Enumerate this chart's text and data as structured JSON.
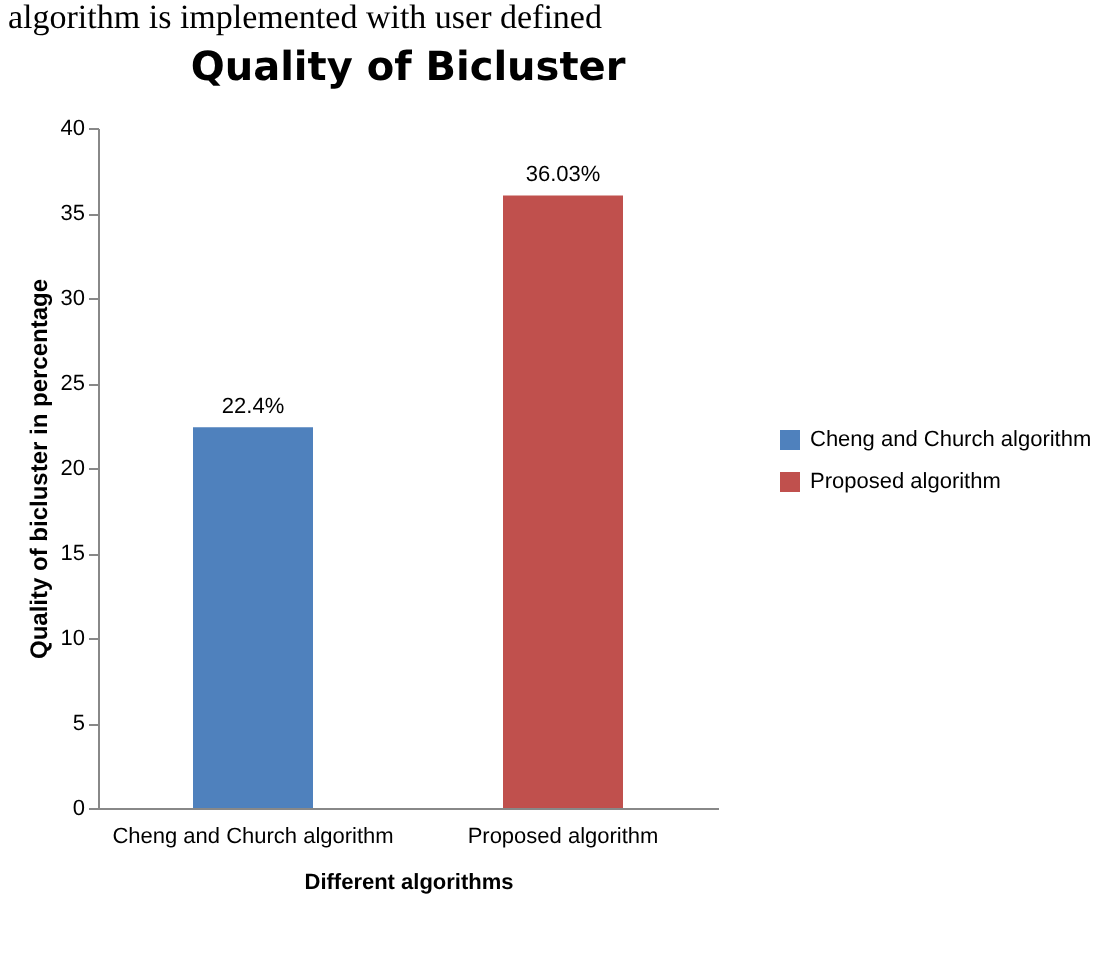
{
  "chart_data": {
    "type": "bar",
    "title": "Quality of Bicluster",
    "xlabel": "Different algorithms",
    "ylabel": "Quality of bicluster in percentage",
    "annotations": [
      "algorithm is implemented with user defined"
    ],
    "categories": [
      "Cheng and Church algorithm",
      "Proposed algorithm"
    ],
    "series": [
      {
        "name": "Cheng and Church algorithm",
        "color": "#4f81bd",
        "values": [
          22.4,
          null
        ],
        "value_labels": [
          "22.4%",
          null
        ]
      },
      {
        "name": "Proposed algorithm",
        "color": "#c0504d",
        "values": [
          null,
          36.03
        ],
        "value_labels": [
          null,
          "36.03%"
        ]
      }
    ],
    "ylim": [
      0,
      40
    ],
    "yticks": [
      0,
      5,
      10,
      15,
      20,
      25,
      30,
      35,
      40
    ],
    "legend": "right"
  }
}
